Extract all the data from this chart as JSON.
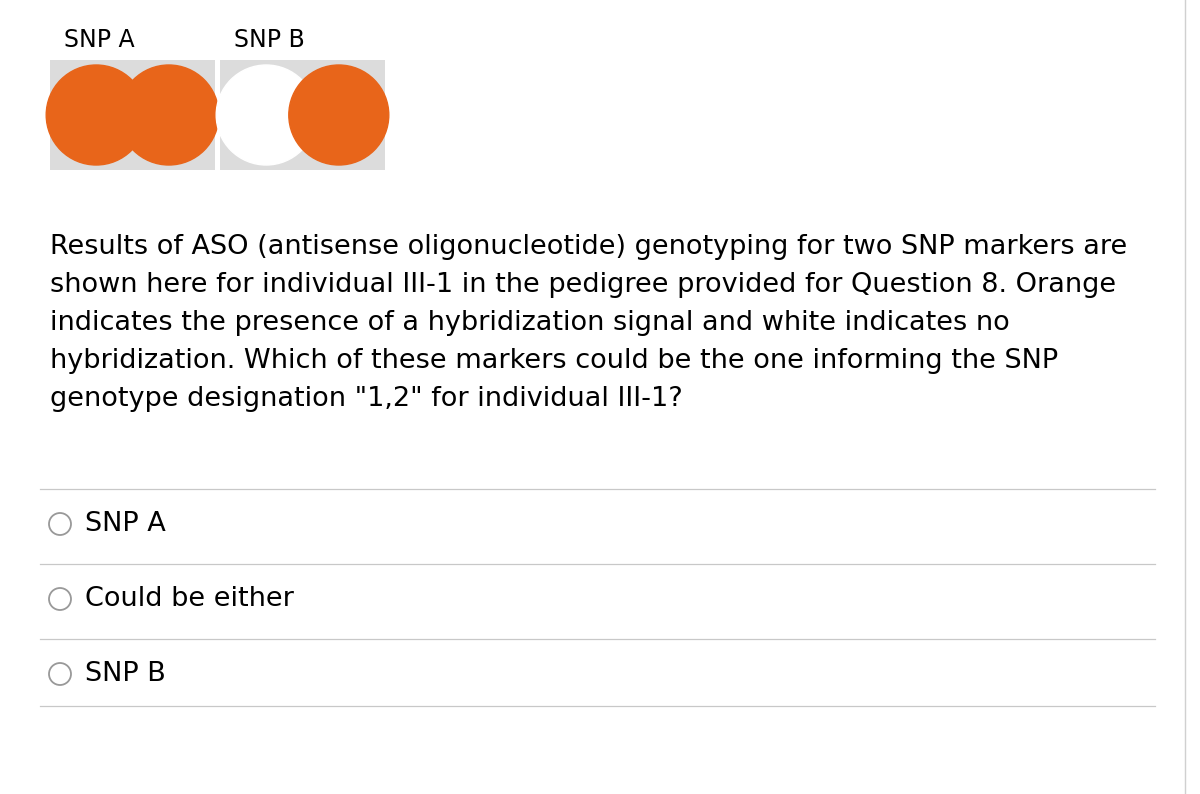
{
  "background_color": "#ffffff",
  "snp_a_label": "SNP A",
  "snp_b_label": "SNP B",
  "orange_color": "#E8651A",
  "white_color": "#ffffff",
  "gray_bg": "#DCDCDC",
  "question_text": "Results of ASO (antisense oligonucleotide) genotyping for two SNP markers are\nshown here for individual III-1 in the pedigree provided for Question 8. Orange\nindicates the presence of a hybridization signal and white indicates no\nhybridization. Which of these markers could be the one informing the SNP\ngenotype designation \"1,2\" for individual III-1?",
  "answer_options": [
    "SNP A",
    "Could be either",
    "SNP B"
  ],
  "label_fontsize": 17,
  "question_fontsize": 19.5,
  "answer_fontsize": 19.5,
  "border_color": "#c0c0c0"
}
